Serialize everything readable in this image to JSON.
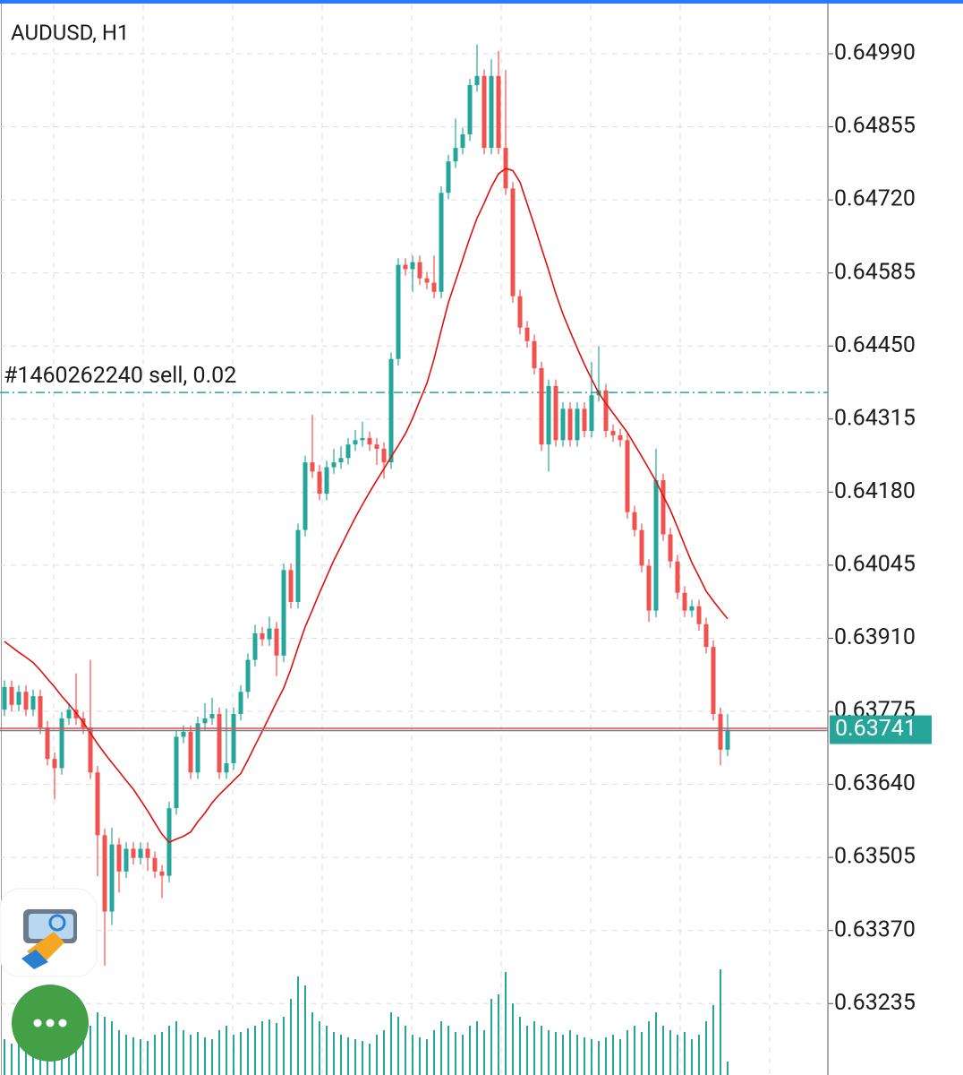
{
  "chart_data": {
    "type": "candlestick",
    "title": "AUDUSD, H1",
    "ylim": [
      0.63103,
      0.65081
    ],
    "yticks": [
      {
        "value": 0.6499,
        "label": "0.64990"
      },
      0.64855,
      {
        "value": 0.6472,
        "label": "0.64720"
      },
      0.64585,
      {
        "value": 0.6445,
        "label": "0.64450"
      },
      0.64315,
      {
        "value": 0.6418,
        "label": "0.64180"
      },
      0.64045,
      {
        "value": 0.6391,
        "label": "0.63910"
      },
      0.63775,
      {
        "value": 0.6364,
        "label": "0.63640"
      },
      0.63505,
      {
        "value": 0.6337,
        "label": "0.63370"
      },
      0.63235
    ],
    "grid": true,
    "up_color": "#26a69a",
    "down_color": "#ef5350",
    "open": [
      0.63778,
      0.6382,
      0.63787,
      0.63811,
      0.63778,
      0.63803,
      0.63745,
      0.63687,
      0.6367,
      0.63762,
      0.63778,
      0.63762,
      0.63745,
      0.63662,
      0.63546,
      0.63405,
      0.63529,
      0.63479,
      0.63521,
      0.63504,
      0.63521,
      0.63504,
      0.63479,
      0.63471,
      0.63596,
      0.63728,
      0.63737,
      0.63662,
      0.63753,
      0.63762,
      0.6377,
      0.63662,
      0.63679,
      0.6377,
      0.63811,
      0.6387,
      0.63919,
      0.63908,
      0.63928,
      0.63878,
      0.64036,
      0.63977,
      0.6411,
      0.64235,
      0.64218,
      0.64177,
      0.64226,
      0.64235,
      0.64243,
      0.64268,
      0.64276,
      0.6428,
      0.64268,
      0.6426,
      0.64235,
      0.64426,
      0.646,
      0.64592,
      0.64605,
      0.64575,
      0.64567,
      0.6455,
      0.64733,
      0.64791,
      0.64816,
      0.64841,
      0.64932,
      0.64949,
      0.64816,
      0.64949,
      0.64816,
      0.64741,
      0.64542,
      0.64484,
      0.64459,
      0.64409,
      0.64268,
      0.64376,
      0.64276,
      0.64334,
      0.64276,
      0.64334,
      0.64293,
      0.64359,
      0.64368,
      0.64293,
      0.64285,
      0.64276,
      0.64143,
      0.6411,
      0.64044,
      0.63961,
      0.64202,
      0.64102,
      0.64052,
      0.63994,
      0.63961,
      0.63969,
      0.63936,
      0.63894,
      0.6377,
      0.63704
    ],
    "high": [
      0.63832,
      0.63832,
      0.63823,
      0.63823,
      0.63815,
      0.63815,
      0.63757,
      0.63699,
      0.63774,
      0.6379,
      0.63845,
      0.63774,
      0.6387,
      0.63674,
      0.63558,
      0.6356,
      0.63541,
      0.63533,
      0.63533,
      0.63533,
      0.63533,
      0.63516,
      0.63491,
      0.63608,
      0.6374,
      0.63749,
      0.63749,
      0.63765,
      0.6379,
      0.638,
      0.63782,
      0.6378,
      0.63782,
      0.63823,
      0.63882,
      0.63935,
      0.63931,
      0.6395,
      0.6394,
      0.64048,
      0.64048,
      0.64122,
      0.64247,
      0.64323,
      0.6423,
      0.64238,
      0.6426,
      0.64265,
      0.6428,
      0.64295,
      0.6431,
      0.64292,
      0.6428,
      0.64272,
      0.64438,
      0.64612,
      0.64612,
      0.64617,
      0.64617,
      0.64587,
      0.64617,
      0.64745,
      0.64803,
      0.6487,
      0.64853,
      0.64944,
      0.65007,
      0.64961,
      0.6498,
      0.64995,
      0.6496,
      0.64753,
      0.64554,
      0.64496,
      0.64471,
      0.64421,
      0.64388,
      0.64388,
      0.64346,
      0.64346,
      0.64346,
      0.64346,
      0.6442,
      0.6445,
      0.6438,
      0.64305,
      0.64297,
      0.64288,
      0.64155,
      0.64122,
      0.64056,
      0.6426,
      0.64214,
      0.64114,
      0.64064,
      0.64006,
      0.63981,
      0.63981,
      0.63948,
      0.63906,
      0.63782,
      0.6377
    ],
    "low": [
      0.63766,
      0.63775,
      0.63775,
      0.63766,
      0.63766,
      0.63733,
      0.63675,
      0.63612,
      0.63658,
      0.6375,
      0.6375,
      0.63733,
      0.6365,
      0.6347,
      0.63305,
      0.6338,
      0.6344,
      0.63467,
      0.63492,
      0.63492,
      0.6348,
      0.63467,
      0.6343,
      0.63459,
      0.63584,
      0.63716,
      0.6365,
      0.6365,
      0.63741,
      0.6375,
      0.6365,
      0.6365,
      0.63667,
      0.63758,
      0.63799,
      0.63858,
      0.63896,
      0.63896,
      0.6384,
      0.63866,
      0.63965,
      0.63965,
      0.64098,
      0.64206,
      0.64165,
      0.64165,
      0.64214,
      0.64223,
      0.64231,
      0.64256,
      0.64264,
      0.64256,
      0.6423,
      0.64205,
      0.64223,
      0.64414,
      0.6458,
      0.6455,
      0.64563,
      0.64555,
      0.64538,
      0.64538,
      0.64721,
      0.64779,
      0.64804,
      0.64829,
      0.6492,
      0.64804,
      0.64804,
      0.64804,
      0.64729,
      0.6453,
      0.64472,
      0.64447,
      0.64397,
      0.64256,
      0.64218,
      0.64264,
      0.64264,
      0.64264,
      0.64264,
      0.64281,
      0.64281,
      0.64347,
      0.64281,
      0.64273,
      0.64264,
      0.64131,
      0.64098,
      0.64032,
      0.6394,
      0.63949,
      0.6409,
      0.6404,
      0.63982,
      0.63949,
      0.63949,
      0.63924,
      0.63882,
      0.63758,
      0.63675,
      0.63692
    ],
    "close": [
      0.6382,
      0.63787,
      0.63811,
      0.63778,
      0.63803,
      0.63745,
      0.63687,
      0.6367,
      0.63762,
      0.63778,
      0.63762,
      0.63745,
      0.63662,
      0.63546,
      0.63405,
      0.63529,
      0.63479,
      0.63521,
      0.63504,
      0.63521,
      0.63504,
      0.63479,
      0.63471,
      0.63596,
      0.63728,
      0.63737,
      0.63662,
      0.63753,
      0.63762,
      0.6377,
      0.63662,
      0.63679,
      0.6377,
      0.63811,
      0.6387,
      0.63919,
      0.63908,
      0.63928,
      0.63878,
      0.64036,
      0.63977,
      0.6411,
      0.64235,
      0.64218,
      0.64177,
      0.64226,
      0.64235,
      0.64243,
      0.64268,
      0.64276,
      0.6428,
      0.64268,
      0.6426,
      0.64235,
      0.64426,
      0.646,
      0.64592,
      0.64605,
      0.64575,
      0.64567,
      0.6455,
      0.64733,
      0.64791,
      0.64816,
      0.64841,
      0.64932,
      0.64949,
      0.64816,
      0.64949,
      0.64816,
      0.64741,
      0.64542,
      0.64484,
      0.64459,
      0.64409,
      0.64268,
      0.64376,
      0.64276,
      0.64334,
      0.64276,
      0.64334,
      0.64293,
      0.64359,
      0.64368,
      0.64293,
      0.64285,
      0.64276,
      0.64143,
      0.6411,
      0.64044,
      0.63961,
      0.64202,
      0.64102,
      0.64052,
      0.63994,
      0.63961,
      0.63969,
      0.63936,
      0.63894,
      0.6377,
      0.63704,
      0.63741
    ],
    "ma": {
      "color": "#e01010",
      "values": [
        0.63904,
        0.63894,
        0.63884,
        0.63875,
        0.63865,
        0.63851,
        0.63835,
        0.6382,
        0.63803,
        0.63788,
        0.63772,
        0.63755,
        0.63735,
        0.63715,
        0.63697,
        0.6368,
        0.63664,
        0.63647,
        0.63631,
        0.63611,
        0.63591,
        0.63569,
        0.63548,
        0.63533,
        0.63539,
        0.63544,
        0.63552,
        0.63571,
        0.63587,
        0.63606,
        0.63621,
        0.63634,
        0.63647,
        0.6366,
        0.63685,
        0.63712,
        0.63738,
        0.63765,
        0.63792,
        0.63818,
        0.63853,
        0.63893,
        0.63931,
        0.63962,
        0.63994,
        0.64024,
        0.64054,
        0.6408,
        0.64107,
        0.64133,
        0.64157,
        0.6418,
        0.64202,
        0.64223,
        0.64245,
        0.64266,
        0.64288,
        0.64316,
        0.64349,
        0.64381,
        0.64426,
        0.64479,
        0.6453,
        0.6457,
        0.6461,
        0.6465,
        0.64686,
        0.64714,
        0.64744,
        0.64768,
        0.64778,
        0.64774,
        0.64753,
        0.64713,
        0.64673,
        0.64631,
        0.6459,
        0.64547,
        0.64509,
        0.64477,
        0.64446,
        0.64416,
        0.64389,
        0.64363,
        0.64344,
        0.64326,
        0.64308,
        0.6429,
        0.64268,
        0.64246,
        0.64223,
        0.642,
        0.64173,
        0.64147,
        0.64115,
        0.64082,
        0.6405,
        0.64024,
        0.63997,
        0.63979,
        0.63962,
        0.63946
      ]
    },
    "volume": {
      "color": "#26a69a",
      "values": [
        40,
        35,
        45,
        38,
        42,
        50,
        48,
        55,
        60,
        52,
        58,
        62,
        55,
        70,
        65,
        60,
        50,
        45,
        42,
        40,
        38,
        45,
        48,
        55,
        60,
        50,
        45,
        48,
        42,
        40,
        50,
        55,
        45,
        48,
        52,
        55,
        60,
        62,
        58,
        65,
        85,
        110,
        100,
        70,
        60,
        55,
        48,
        45,
        42,
        40,
        38,
        35,
        45,
        50,
        70,
        65,
        55,
        45,
        42,
        40,
        50,
        60,
        55,
        48,
        45,
        55,
        60,
        50,
        85,
        90,
        115,
        80,
        65,
        55,
        60,
        55,
        50,
        48,
        45,
        50,
        45,
        42,
        40,
        38,
        42,
        45,
        40,
        50,
        55,
        48,
        60,
        70,
        55,
        50,
        45,
        48,
        40,
        45,
        60,
        78,
        118,
        15
      ]
    },
    "order": {
      "text": "#1460262240 sell, 0.02",
      "value": 0.64364,
      "color": "#26a69a"
    },
    "last_price": {
      "value": 0.63741,
      "color": "#26a69a",
      "line_color": "#e05050"
    }
  }
}
